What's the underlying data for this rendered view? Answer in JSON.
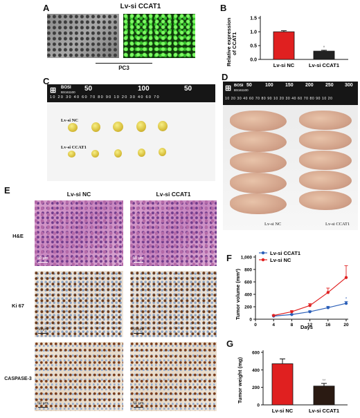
{
  "panels": {
    "a": "A",
    "b": "B",
    "c": "C",
    "d": "D",
    "e": "E",
    "f": "F",
    "g": "G"
  },
  "panel_a": {
    "title": "Lv-si CCAT1",
    "cell_line": "PC3"
  },
  "panel_b": {
    "ylabel_line1": "Relative expression",
    "ylabel_line2": "of CCAT1",
    "yticks": [
      "0.0",
      "0.5",
      "1.0",
      "1.5"
    ],
    "significance": "*",
    "chart_data": {
      "type": "bar",
      "categories": [
        "Lv-si NC",
        "Lv-si CCAT1"
      ],
      "values": [
        1.0,
        0.3
      ],
      "errors": [
        0.04,
        0.03
      ],
      "ylim": [
        0,
        1.5
      ],
      "colors": [
        "#e02020",
        "#222222"
      ]
    }
  },
  "panel_c": {
    "ruler_brand": "BOSI",
    "ruler_code": "BS161100",
    "ruler_big": [
      "50",
      "100",
      "50"
    ],
    "ruler_small": "10 20 30 40 60 70 80 90 10 20 30 40 60 70",
    "row1_label": "Lv-si NC",
    "row2_label": "Lv-si CCAT1"
  },
  "panel_d": {
    "ruler_brand": "BOSI",
    "ruler_code": "BS161100",
    "ruler_big": [
      "50",
      "100",
      "150",
      "200",
      "250",
      "300"
    ],
    "ruler_small": "10 20 30 40 60 70 80 90 10 20 30 40 60 70 80 90 10 20",
    "left_label": "Lv-si NC",
    "right_label": "Lv-si CCAT1"
  },
  "panel_e": {
    "col1": "Lv-si NC",
    "col2": "Lv-si CCAT1",
    "rows": [
      "H&E",
      "Ki 67",
      "CASPASE-3"
    ],
    "scale": "50 μm"
  },
  "panel_f": {
    "ylabel": "Tumor volume (mm³)",
    "xlabel": "Days",
    "yticks": [
      "0",
      "200",
      "400",
      "600",
      "800",
      "1,000"
    ],
    "xticks": [
      "0",
      "4",
      "8",
      "12",
      "16",
      "20"
    ],
    "significance": "*",
    "chart_data": {
      "type": "line",
      "x": [
        4,
        8,
        12,
        16,
        20
      ],
      "xlim": [
        0,
        20
      ],
      "ylim": [
        0,
        1000
      ],
      "series": [
        {
          "name": "Lv-si CCAT1",
          "values": [
            50,
            75,
            120,
            185,
            255
          ],
          "errors": [
            8,
            10,
            15,
            22,
            30
          ],
          "color": "#2b5fb8"
        },
        {
          "name": "Lv-si NC",
          "values": [
            60,
            120,
            220,
            430,
            670
          ],
          "errors": [
            10,
            18,
            30,
            70,
            190
          ],
          "color": "#e02020"
        }
      ]
    }
  },
  "panel_g": {
    "ylabel": "Tumor weight (mg)",
    "yticks": [
      "0",
      "200",
      "400",
      "600"
    ],
    "significance": "**",
    "chart_data": {
      "type": "bar",
      "categories": [
        "Lv-si NC",
        "Lv-si CCAT1"
      ],
      "values": [
        470,
        215
      ],
      "errors": [
        55,
        30
      ],
      "ylim": [
        0,
        600
      ],
      "colors": [
        "#e02020",
        "#2a1a12"
      ]
    }
  }
}
